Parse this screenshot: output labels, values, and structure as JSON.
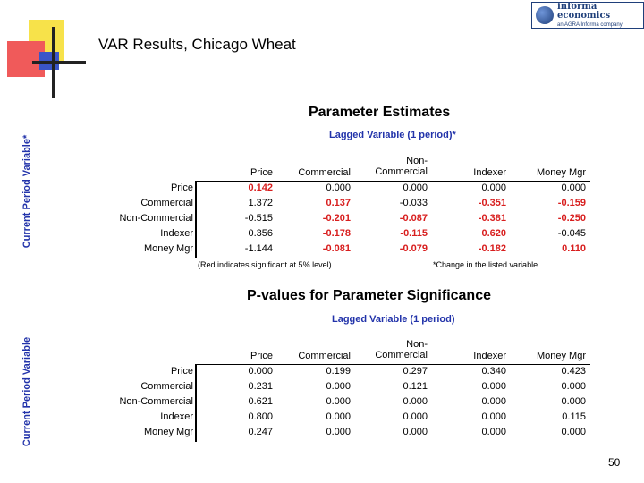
{
  "title": "VAR Results, Chicago Wheat",
  "logo": {
    "name": "informa economics",
    "tagline": "an AGRA Informa company"
  },
  "page_number": "50",
  "row_labels": [
    "Price",
    "Commercial",
    "Non-Commercial",
    "Indexer",
    "Money Mgr"
  ],
  "columns": [
    "Price",
    "Commercial",
    "Non-Commercial",
    "Indexer",
    "Money Mgr"
  ],
  "column_headers": {
    "price": "Price",
    "commercial": "Commercial",
    "noncommercial_1": "Non-",
    "noncommercial_2": "Commercial",
    "indexer": "Indexer",
    "money_mgr": "Money Mgr"
  },
  "significant_color": "#d81e1e",
  "parameter_estimates": {
    "title": "Parameter Estimates",
    "subtitle": "Lagged Variable (1 period)*",
    "side_label": "Current Period Variable*",
    "note_left": "(Red indicates significant at 5% level)",
    "note_right": "*Change in the listed variable",
    "rows": [
      {
        "label": "Price",
        "values": [
          "0.142",
          "0.000",
          "0.000",
          "0.000",
          "0.000"
        ],
        "significant": [
          true,
          false,
          false,
          false,
          false
        ]
      },
      {
        "label": "Commercial",
        "values": [
          "1.372",
          "0.137",
          "-0.033",
          "-0.351",
          "-0.159"
        ],
        "significant": [
          false,
          true,
          false,
          true,
          true
        ]
      },
      {
        "label": "Non-Commercial",
        "values": [
          "-0.515",
          "-0.201",
          "-0.087",
          "-0.381",
          "-0.250"
        ],
        "significant": [
          false,
          true,
          true,
          true,
          true
        ]
      },
      {
        "label": "Indexer",
        "values": [
          "0.356",
          "-0.178",
          "-0.115",
          "0.620",
          "-0.045"
        ],
        "significant": [
          false,
          true,
          true,
          true,
          false
        ]
      },
      {
        "label": "Money Mgr",
        "values": [
          "-1.144",
          "-0.081",
          "-0.079",
          "-0.182",
          "0.110"
        ],
        "significant": [
          false,
          true,
          true,
          true,
          true
        ]
      }
    ]
  },
  "p_values": {
    "title": "P-values for Parameter Significance",
    "subtitle": "Lagged Variable (1 period)",
    "side_label": "Current Period Variable",
    "rows": [
      {
        "label": "Price",
        "values": [
          "0.000",
          "0.199",
          "0.297",
          "0.340",
          "0.423"
        ]
      },
      {
        "label": "Commercial",
        "values": [
          "0.231",
          "0.000",
          "0.121",
          "0.000",
          "0.000"
        ]
      },
      {
        "label": "Non-Commercial",
        "values": [
          "0.621",
          "0.000",
          "0.000",
          "0.000",
          "0.000"
        ]
      },
      {
        "label": "Indexer",
        "values": [
          "0.800",
          "0.000",
          "0.000",
          "0.000",
          "0.115"
        ]
      },
      {
        "label": "Money Mgr",
        "values": [
          "0.247",
          "0.000",
          "0.000",
          "0.000",
          "0.000"
        ]
      }
    ]
  }
}
